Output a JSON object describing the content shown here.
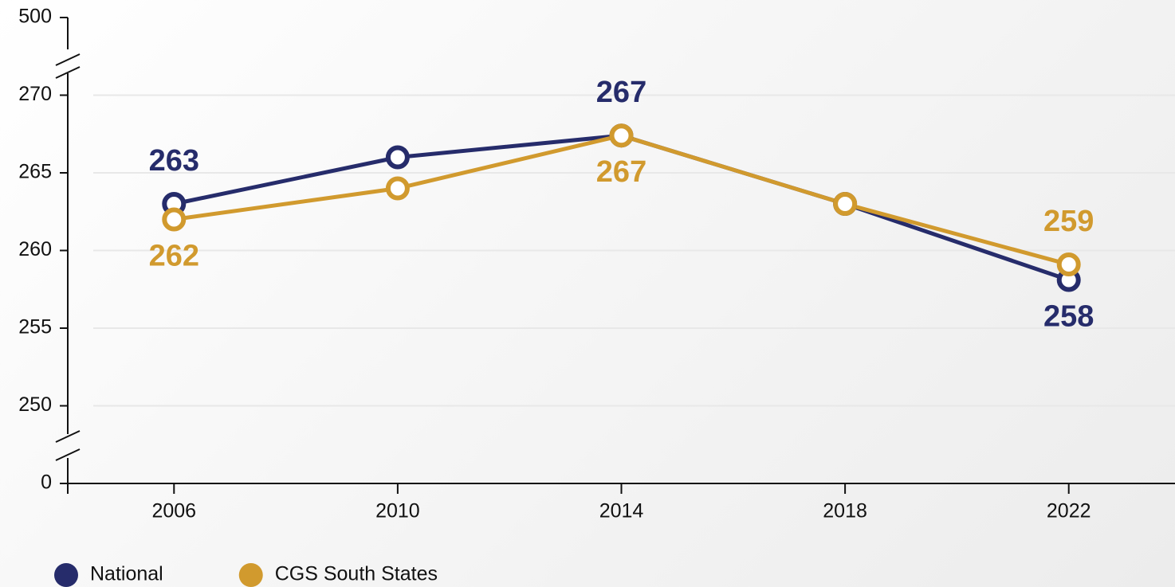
{
  "chart_data": {
    "type": "line",
    "x": [
      2006,
      2010,
      2014,
      2018,
      2022
    ],
    "xlim": [
      2004.1,
      2023.9
    ],
    "xticks": [
      2006,
      2010,
      2014,
      2018,
      2022
    ],
    "ylim": [
      0,
      500
    ],
    "yticks": [
      0,
      250,
      255,
      260,
      265,
      270,
      500
    ],
    "axis_break": true,
    "grid": true,
    "legend": "bottom-left",
    "series": [
      {
        "name": "National",
        "color": "#262c6b",
        "values": [
          263,
          266,
          267.4,
          263,
          258.1
        ],
        "value_labels": [
          "263",
          null,
          "267",
          null,
          "258"
        ]
      },
      {
        "name": "CGS South States",
        "color": "#d19a2e",
        "values": [
          262,
          264,
          267.4,
          263,
          259.1
        ],
        "value_labels": [
          "262",
          null,
          "267",
          null,
          "259"
        ]
      }
    ]
  }
}
